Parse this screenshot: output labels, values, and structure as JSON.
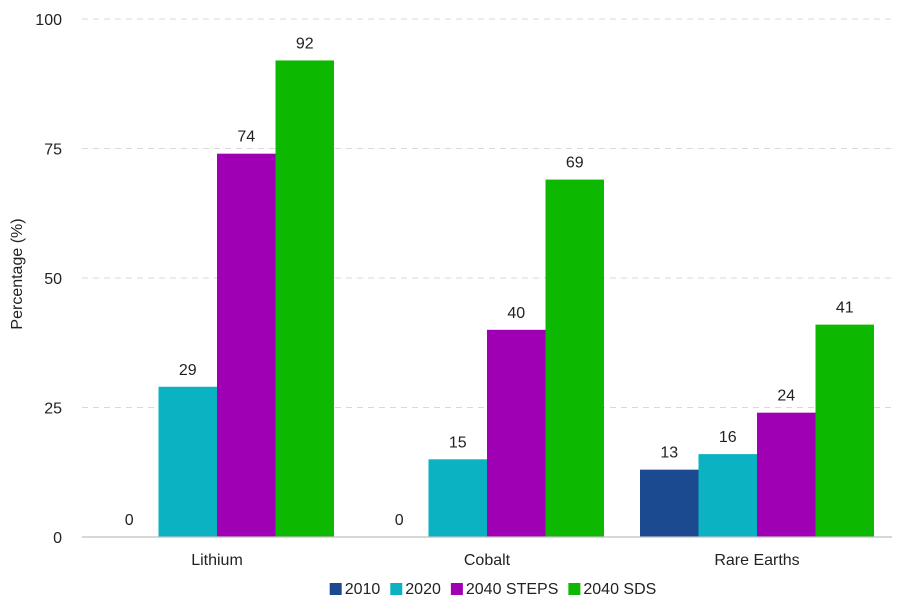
{
  "chart_data": {
    "type": "bar",
    "title": "",
    "xlabel": "",
    "ylabel": "Percentage (%)",
    "ylim": [
      0,
      100
    ],
    "yticks": [
      0,
      25,
      50,
      75,
      100
    ],
    "grid": true,
    "legend_position": "bottom",
    "categories": [
      "Lithium",
      "Cobalt",
      "Rare Earths"
    ],
    "series": [
      {
        "name": "2010",
        "color": "#1b4a91",
        "values": [
          0,
          0,
          13
        ]
      },
      {
        "name": "2020",
        "color": "#0ab2c2",
        "values": [
          29,
          15,
          16
        ]
      },
      {
        "name": "2040 STEPS",
        "color": "#a000b4",
        "values": [
          74,
          40,
          24
        ]
      },
      {
        "name": "2040 SDS",
        "color": "#0db800",
        "values": [
          92,
          69,
          41
        ]
      }
    ]
  }
}
